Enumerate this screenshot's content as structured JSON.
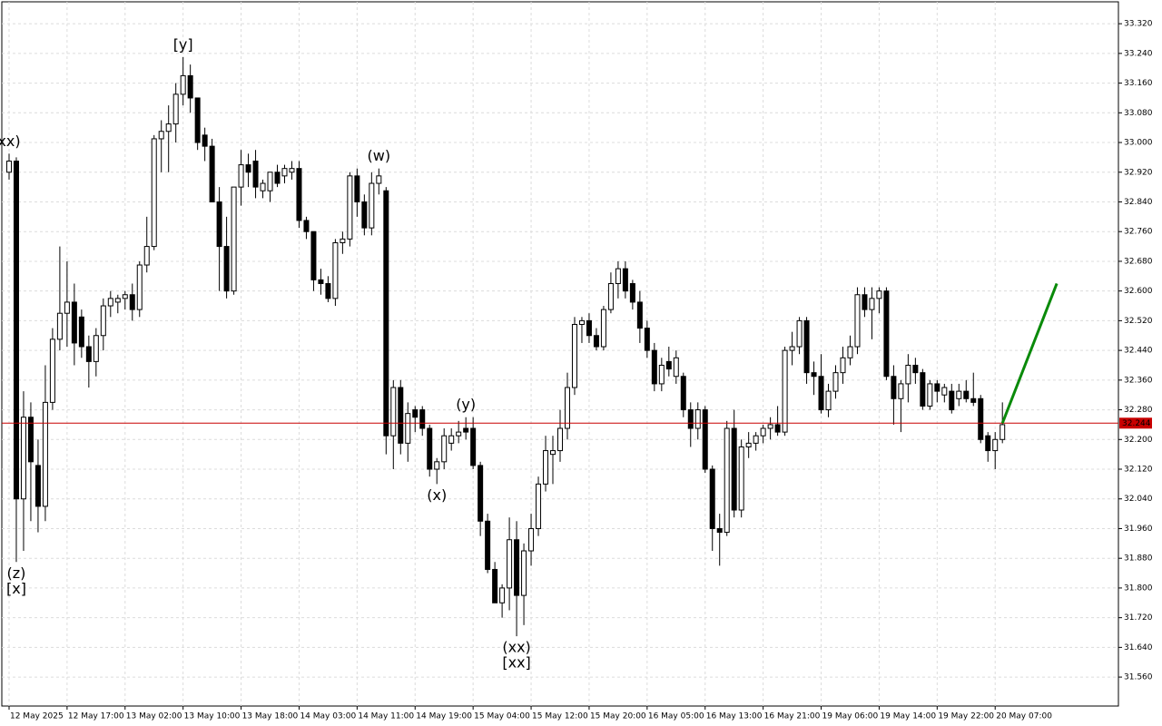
{
  "chart_data": {
    "type": "candlestick",
    "candles": [
      [
        32.92,
        32.97,
        32.9,
        32.95
      ],
      [
        32.95,
        32.96,
        31.87,
        32.04
      ],
      [
        32.04,
        32.33,
        31.9,
        32.26
      ],
      [
        32.26,
        32.3,
        31.98,
        32.14
      ],
      [
        32.13,
        32.2,
        31.95,
        32.02
      ],
      [
        32.02,
        32.4,
        31.98,
        32.3
      ],
      [
        32.3,
        32.5,
        32.28,
        32.47
      ],
      [
        32.47,
        32.72,
        32.44,
        32.54
      ],
      [
        32.54,
        32.68,
        32.45,
        32.57
      ],
      [
        32.57,
        32.62,
        32.4,
        32.46
      ],
      [
        32.53,
        32.55,
        32.42,
        32.45
      ],
      [
        32.45,
        32.48,
        32.34,
        32.41
      ],
      [
        32.41,
        32.5,
        32.37,
        32.48
      ],
      [
        32.48,
        32.58,
        32.44,
        32.56
      ],
      [
        32.56,
        32.6,
        32.53,
        32.58
      ],
      [
        32.57,
        32.59,
        32.54,
        32.58
      ],
      [
        32.58,
        32.6,
        32.55,
        32.59
      ],
      [
        32.59,
        32.62,
        32.52,
        32.55
      ],
      [
        32.55,
        32.68,
        32.53,
        32.67
      ],
      [
        32.67,
        32.8,
        32.65,
        32.72
      ],
      [
        32.72,
        33.02,
        32.71,
        33.01
      ],
      [
        33.01,
        33.06,
        32.92,
        33.03
      ],
      [
        33.03,
        33.1,
        32.92,
        33.05
      ],
      [
        33.05,
        33.16,
        33.0,
        33.13
      ],
      [
        33.13,
        33.23,
        33.1,
        33.18
      ],
      [
        33.18,
        33.21,
        33.08,
        33.12
      ],
      [
        33.12,
        33.12,
        32.98,
        33.0
      ],
      [
        33.02,
        33.04,
        32.95,
        32.99
      ],
      [
        32.99,
        33.01,
        32.84,
        32.84
      ],
      [
        32.84,
        32.88,
        32.6,
        32.72
      ],
      [
        32.72,
        32.8,
        32.58,
        32.6
      ],
      [
        32.6,
        32.88,
        32.59,
        32.88
      ],
      [
        32.88,
        32.98,
        32.83,
        32.94
      ],
      [
        32.94,
        32.97,
        32.88,
        32.92
      ],
      [
        32.95,
        32.98,
        32.85,
        32.88
      ],
      [
        32.87,
        32.9,
        32.85,
        32.89
      ],
      [
        32.87,
        32.92,
        32.84,
        32.92
      ],
      [
        32.92,
        32.94,
        32.88,
        32.89
      ],
      [
        32.91,
        32.94,
        32.89,
        32.93
      ],
      [
        32.92,
        32.95,
        32.9,
        32.93
      ],
      [
        32.93,
        32.95,
        32.77,
        32.79
      ],
      [
        32.79,
        32.8,
        32.74,
        32.76
      ],
      [
        32.76,
        32.76,
        32.6,
        32.63
      ],
      [
        32.63,
        32.66,
        32.59,
        32.62
      ],
      [
        32.62,
        32.64,
        32.57,
        32.58
      ],
      [
        32.58,
        32.74,
        32.56,
        32.73
      ],
      [
        32.73,
        32.76,
        32.7,
        32.74
      ],
      [
        32.74,
        32.92,
        32.72,
        32.91
      ],
      [
        32.91,
        32.93,
        32.8,
        32.84
      ],
      [
        32.84,
        32.86,
        32.75,
        32.77
      ],
      [
        32.77,
        32.92,
        32.75,
        32.89
      ],
      [
        32.89,
        32.93,
        32.86,
        32.91
      ],
      [
        32.87,
        32.88,
        32.16,
        32.21
      ],
      [
        32.21,
        32.36,
        32.12,
        32.34
      ],
      [
        32.34,
        32.36,
        32.16,
        32.19
      ],
      [
        32.19,
        32.3,
        32.14,
        32.27
      ],
      [
        32.28,
        32.29,
        32.22,
        32.26
      ],
      [
        32.28,
        32.29,
        32.21,
        32.23
      ],
      [
        32.23,
        32.24,
        32.1,
        32.12
      ],
      [
        32.12,
        32.15,
        32.08,
        32.14
      ],
      [
        32.14,
        32.23,
        32.12,
        32.21
      ],
      [
        32.19,
        32.23,
        32.17,
        32.21
      ],
      [
        32.21,
        32.25,
        32.19,
        32.22
      ],
      [
        32.23,
        32.26,
        32.2,
        32.22
      ],
      [
        32.23,
        32.26,
        32.12,
        32.13
      ],
      [
        32.13,
        32.14,
        31.94,
        31.98
      ],
      [
        31.98,
        32.0,
        31.84,
        31.85
      ],
      [
        31.85,
        31.87,
        31.76,
        31.76
      ],
      [
        31.76,
        31.81,
        31.72,
        31.8
      ],
      [
        31.8,
        31.99,
        31.74,
        31.93
      ],
      [
        31.93,
        31.98,
        31.67,
        31.78
      ],
      [
        31.78,
        31.92,
        31.7,
        31.9
      ],
      [
        31.9,
        32.0,
        31.86,
        31.96
      ],
      [
        31.96,
        32.1,
        31.94,
        32.08
      ],
      [
        32.08,
        32.21,
        32.06,
        32.17
      ],
      [
        32.16,
        32.21,
        32.08,
        32.17
      ],
      [
        32.17,
        32.28,
        32.14,
        32.23
      ],
      [
        32.23,
        32.38,
        32.2,
        32.34
      ],
      [
        32.34,
        32.53,
        32.32,
        32.51
      ],
      [
        32.51,
        32.53,
        32.46,
        32.52
      ],
      [
        32.52,
        32.54,
        32.46,
        32.48
      ],
      [
        32.48,
        32.5,
        32.44,
        32.45
      ],
      [
        32.45,
        32.56,
        32.44,
        32.55
      ],
      [
        32.55,
        32.65,
        32.54,
        32.62
      ],
      [
        32.62,
        32.68,
        32.58,
        32.66
      ],
      [
        32.66,
        32.68,
        32.58,
        32.6
      ],
      [
        32.62,
        32.63,
        32.55,
        32.57
      ],
      [
        32.57,
        32.6,
        32.46,
        32.5
      ],
      [
        32.5,
        32.52,
        32.42,
        32.44
      ],
      [
        32.44,
        32.46,
        32.33,
        32.35
      ],
      [
        32.35,
        32.42,
        32.33,
        32.4
      ],
      [
        32.41,
        32.45,
        32.37,
        32.39
      ],
      [
        32.37,
        32.44,
        32.35,
        32.42
      ],
      [
        32.37,
        32.38,
        32.26,
        32.28
      ],
      [
        32.28,
        32.3,
        32.18,
        32.23
      ],
      [
        32.23,
        32.3,
        32.2,
        32.28
      ],
      [
        32.28,
        32.29,
        32.11,
        32.12
      ],
      [
        32.12,
        32.13,
        31.9,
        31.96
      ],
      [
        31.96,
        32.0,
        31.86,
        31.95
      ],
      [
        31.95,
        32.25,
        31.94,
        32.23
      ],
      [
        32.23,
        32.28,
        31.99,
        32.01
      ],
      [
        32.01,
        32.2,
        31.99,
        32.18
      ],
      [
        32.18,
        32.22,
        32.15,
        32.19
      ],
      [
        32.19,
        32.22,
        32.17,
        32.21
      ],
      [
        32.21,
        32.24,
        32.19,
        32.23
      ],
      [
        32.23,
        32.26,
        32.2,
        32.24
      ],
      [
        32.24,
        32.29,
        32.21,
        32.22
      ],
      [
        32.22,
        32.45,
        32.21,
        32.44
      ],
      [
        32.44,
        32.49,
        32.4,
        32.45
      ],
      [
        32.45,
        32.53,
        32.43,
        32.52
      ],
      [
        32.52,
        32.53,
        32.35,
        32.38
      ],
      [
        32.38,
        32.41,
        32.32,
        32.37
      ],
      [
        32.37,
        32.43,
        32.27,
        32.28
      ],
      [
        32.28,
        32.35,
        32.26,
        32.33
      ],
      [
        32.33,
        32.4,
        32.31,
        32.38
      ],
      [
        32.38,
        32.45,
        32.35,
        32.42
      ],
      [
        32.42,
        32.48,
        32.4,
        32.45
      ],
      [
        32.45,
        32.61,
        32.43,
        32.59
      ],
      [
        32.59,
        32.61,
        32.53,
        32.55
      ],
      [
        32.55,
        32.61,
        32.47,
        32.58
      ],
      [
        32.58,
        32.61,
        32.54,
        32.6
      ],
      [
        32.6,
        32.61,
        32.36,
        32.37
      ],
      [
        32.37,
        32.4,
        32.24,
        32.31
      ],
      [
        32.31,
        32.36,
        32.22,
        32.35
      ],
      [
        32.35,
        32.43,
        32.3,
        32.4
      ],
      [
        32.4,
        32.42,
        32.35,
        32.38
      ],
      [
        32.38,
        32.39,
        32.28,
        32.29
      ],
      [
        32.29,
        32.36,
        32.28,
        32.35
      ],
      [
        32.35,
        32.36,
        32.3,
        32.33
      ],
      [
        32.32,
        32.35,
        32.3,
        32.34
      ],
      [
        32.33,
        32.35,
        32.27,
        32.28
      ],
      [
        32.31,
        32.35,
        32.29,
        32.33
      ],
      [
        32.33,
        32.36,
        32.3,
        32.31
      ],
      [
        32.31,
        32.38,
        32.29,
        32.3
      ],
      [
        32.31,
        32.32,
        32.19,
        32.2
      ],
      [
        32.21,
        32.22,
        32.14,
        32.17
      ],
      [
        32.17,
        32.22,
        32.12,
        32.2
      ],
      [
        32.2,
        32.3,
        32.19,
        32.24
      ]
    ],
    "xlim": [
      -1,
      153
    ],
    "xticks": [
      {
        "value": 0,
        "label": "12 May 2025"
      },
      {
        "value": 8,
        "label": "12 May 17:00"
      },
      {
        "value": 16,
        "label": "13 May 02:00"
      },
      {
        "value": 24,
        "label": "13 May 10:00"
      },
      {
        "value": 32,
        "label": "13 May 18:00"
      },
      {
        "value": 40,
        "label": "14 May 03:00"
      },
      {
        "value": 48,
        "label": "14 May 11:00"
      },
      {
        "value": 56,
        "label": "14 May 19:00"
      },
      {
        "value": 64,
        "label": "15 May 04:00"
      },
      {
        "value": 72,
        "label": "15 May 12:00"
      },
      {
        "value": 80,
        "label": "15 May 20:00"
      },
      {
        "value": 88,
        "label": "16 May 05:00"
      },
      {
        "value": 96,
        "label": "16 May 13:00"
      },
      {
        "value": 104,
        "label": "16 May 21:00"
      },
      {
        "value": 112,
        "label": "19 May 06:00"
      },
      {
        "value": 120,
        "label": "19 May 14:00"
      },
      {
        "value": 128,
        "label": "19 May 22:00"
      },
      {
        "value": 136,
        "label": "20 May 07:00"
      }
    ],
    "ylim": [
      31.482,
      33.379
    ],
    "yticks": [
      {
        "value": 31.56,
        "label": "31.560"
      },
      {
        "value": 31.64,
        "label": "31.640"
      },
      {
        "value": 31.72,
        "label": "31.720"
      },
      {
        "value": 31.8,
        "label": "31.800"
      },
      {
        "value": 31.88,
        "label": "31.880"
      },
      {
        "value": 31.96,
        "label": "31.960"
      },
      {
        "value": 32.04,
        "label": "32.040"
      },
      {
        "value": 32.12,
        "label": "32.120"
      },
      {
        "value": 32.2,
        "label": "32.200"
      },
      {
        "value": 32.28,
        "label": "32.280"
      },
      {
        "value": 32.36,
        "label": "32.360"
      },
      {
        "value": 32.44,
        "label": "32.440"
      },
      {
        "value": 32.52,
        "label": "32.520"
      },
      {
        "value": 32.6,
        "label": "32.600"
      },
      {
        "value": 32.68,
        "label": "32.680"
      },
      {
        "value": 32.76,
        "label": "32.760"
      },
      {
        "value": 32.84,
        "label": "32.840"
      },
      {
        "value": 32.92,
        "label": "32.920"
      },
      {
        "value": 33,
        "label": "33.000"
      },
      {
        "value": 33.08,
        "label": "33.080"
      },
      {
        "value": 33.16,
        "label": "33.160"
      },
      {
        "value": 33.24,
        "label": "33.240"
      },
      {
        "value": 33.32,
        "label": "33.320"
      }
    ],
    "grid": true,
    "up_color": "#ffffff",
    "down_color": "#000000",
    "current_price": 32.244,
    "current_price_color": "#c80000",
    "annotations": [
      {
        "text": "xx)",
        "color": "#1a1ad0",
        "candle": 0,
        "at": "high",
        "level": 1
      },
      {
        "text": "(z)",
        "color": "#1a1ad0",
        "candle": 1,
        "at": "low",
        "level": 1
      },
      {
        "text": "[x]",
        "color": "#3cc83c",
        "candle": 1,
        "at": "low",
        "level": 2
      },
      {
        "text": "[y]",
        "color": "#3cc83c",
        "candle": 24,
        "at": "high",
        "level": 1
      },
      {
        "text": "(w)",
        "color": "#1a1ad0",
        "candle": 51,
        "at": "high",
        "level": 1
      },
      {
        "text": "(x)",
        "color": "#1a1ad0",
        "candle": 59,
        "at": "low",
        "level": 1
      },
      {
        "text": "(y)",
        "color": "#1a1ad0",
        "candle": 63,
        "at": "high",
        "level": 1
      },
      {
        "text": "(xx)",
        "color": "#1a1ad0",
        "candle": 70,
        "at": "low",
        "level": 1
      },
      {
        "text": "[xx]",
        "color": "#3cc83c",
        "candle": 70,
        "at": "low",
        "level": 2
      }
    ],
    "forecast": {
      "from": [
        137,
        32.244
      ],
      "to": [
        144.5,
        32.62
      ],
      "color": "#0a8a0a"
    }
  }
}
